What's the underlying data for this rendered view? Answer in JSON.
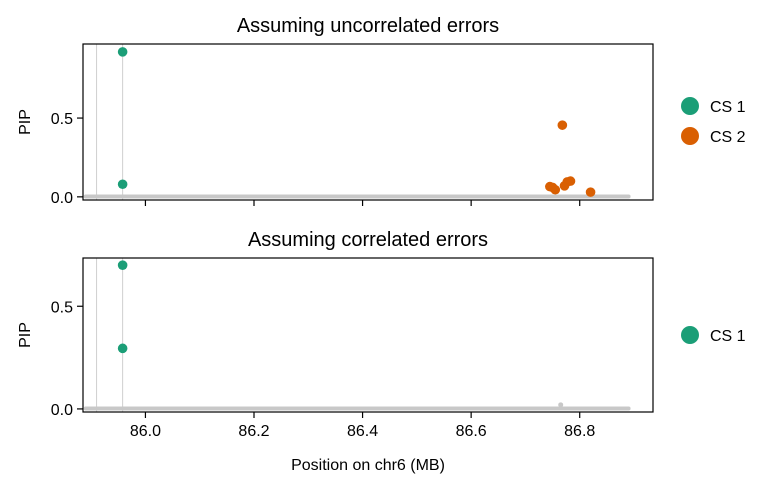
{
  "chart_data": [
    {
      "type": "scatter",
      "title": "Assuming uncorrelated errors",
      "ylabel": "PIP",
      "xlabel": "",
      "xlim": [
        85.885,
        86.935
      ],
      "ylim": [
        -0.02,
        0.97
      ],
      "yticks": [
        0.0,
        0.5
      ],
      "ytick_labels": [
        "0.0",
        "0.5"
      ],
      "xticks": [
        86.0,
        86.2,
        86.4,
        86.6,
        86.8
      ],
      "xtick_labels": [],
      "vlines": [
        85.91,
        85.958
      ],
      "background": {
        "x_start": 85.89,
        "x_end": 86.89,
        "y": 0.002,
        "color": "#c8c8c8"
      },
      "legend": {
        "position": "right",
        "entries": [
          "CS 1",
          "CS 2"
        ]
      },
      "series": [
        {
          "name": "CS 1",
          "color": "#1b9e77",
          "points": [
            [
              85.958,
              0.92
            ],
            [
              85.958,
              0.08
            ]
          ]
        },
        {
          "name": "CS 2",
          "color": "#d95f02",
          "points": [
            [
              86.745,
              0.065
            ],
            [
              86.75,
              0.06
            ],
            [
              86.755,
              0.045
            ],
            [
              86.768,
              0.455
            ],
            [
              86.772,
              0.07
            ],
            [
              86.777,
              0.095
            ],
            [
              86.783,
              0.1
            ],
            [
              86.82,
              0.03
            ]
          ]
        }
      ]
    },
    {
      "type": "scatter",
      "title": "Assuming correlated errors",
      "ylabel": "PIP",
      "xlabel": "Position on chr6 (MB)",
      "xlim": [
        85.885,
        86.935
      ],
      "ylim": [
        -0.015,
        0.735
      ],
      "yticks": [
        0.0,
        0.5
      ],
      "ytick_labels": [
        "0.0",
        "0.5"
      ],
      "xticks": [
        86.0,
        86.2,
        86.4,
        86.6,
        86.8
      ],
      "xtick_labels": [
        "86.0",
        "86.2",
        "86.4",
        "86.6",
        "86.8"
      ],
      "vlines": [
        85.91,
        85.958
      ],
      "background": {
        "x_start": 85.89,
        "x_end": 86.89,
        "y": 0.002,
        "color": "#c8c8c8"
      },
      "legend": {
        "position": "right",
        "entries": [
          "CS 1"
        ]
      },
      "series": [
        {
          "name": "CS 1",
          "color": "#1b9e77",
          "points": [
            [
              85.958,
              0.7
            ],
            [
              85.958,
              0.295
            ]
          ]
        }
      ]
    }
  ]
}
